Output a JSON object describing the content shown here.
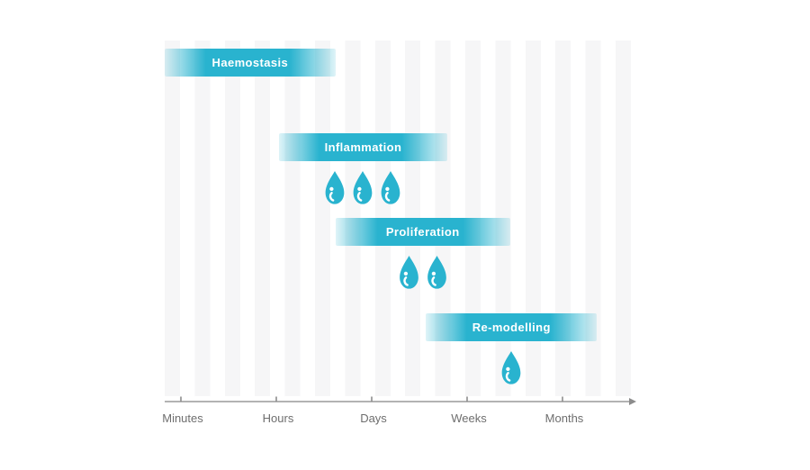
{
  "figure": {
    "title": "",
    "description": "Wound healing phases timeline"
  },
  "colors": {
    "bar_teal": "#29b3cf",
    "bar_fade": "rgba(41,179,207,0.15)",
    "stripe_gray": "#f6f6f7",
    "axis_line": "#9a9a9a",
    "axis_tick": "#8c8c8c",
    "tick_label_gray": "#6e6e6e",
    "bar_label_white": "#ffffff",
    "droplet_teal": "#29b3cf"
  },
  "icons": {
    "droplet": "droplet-icon"
  },
  "chart_data": {
    "type": "bar",
    "subtype": "gantt-timeline",
    "title": "",
    "xlabel": "",
    "ylabel": "",
    "categories": [
      "Minutes",
      "Hours",
      "Days",
      "Weeks",
      "Months"
    ],
    "axis": {
      "orientation": "horizontal",
      "arrow_at_end": true,
      "xlim_category_units": [
        -0.17,
        4.77
      ],
      "gridlines": false,
      "background": "vertical light-gray stripes"
    },
    "phases": [
      {
        "label": "Haemostasis",
        "start": -0.17,
        "end": 1.62,
        "droplets": 0,
        "row": 0
      },
      {
        "label": "Inflammation",
        "start": 1.03,
        "end": 2.79,
        "droplets": 3,
        "row": 1
      },
      {
        "label": "Proliferation",
        "start": 1.62,
        "end": 3.45,
        "droplets": 2,
        "row": 2
      },
      {
        "label": "Re-modelling",
        "start": 2.57,
        "end": 4.36,
        "droplets": 1,
        "row": 3
      }
    ],
    "legend": "none",
    "note_units": "start/end are in category-index units: 0=Minutes, 1=Hours, 2=Days, 3=Weeks, 4=Months"
  }
}
